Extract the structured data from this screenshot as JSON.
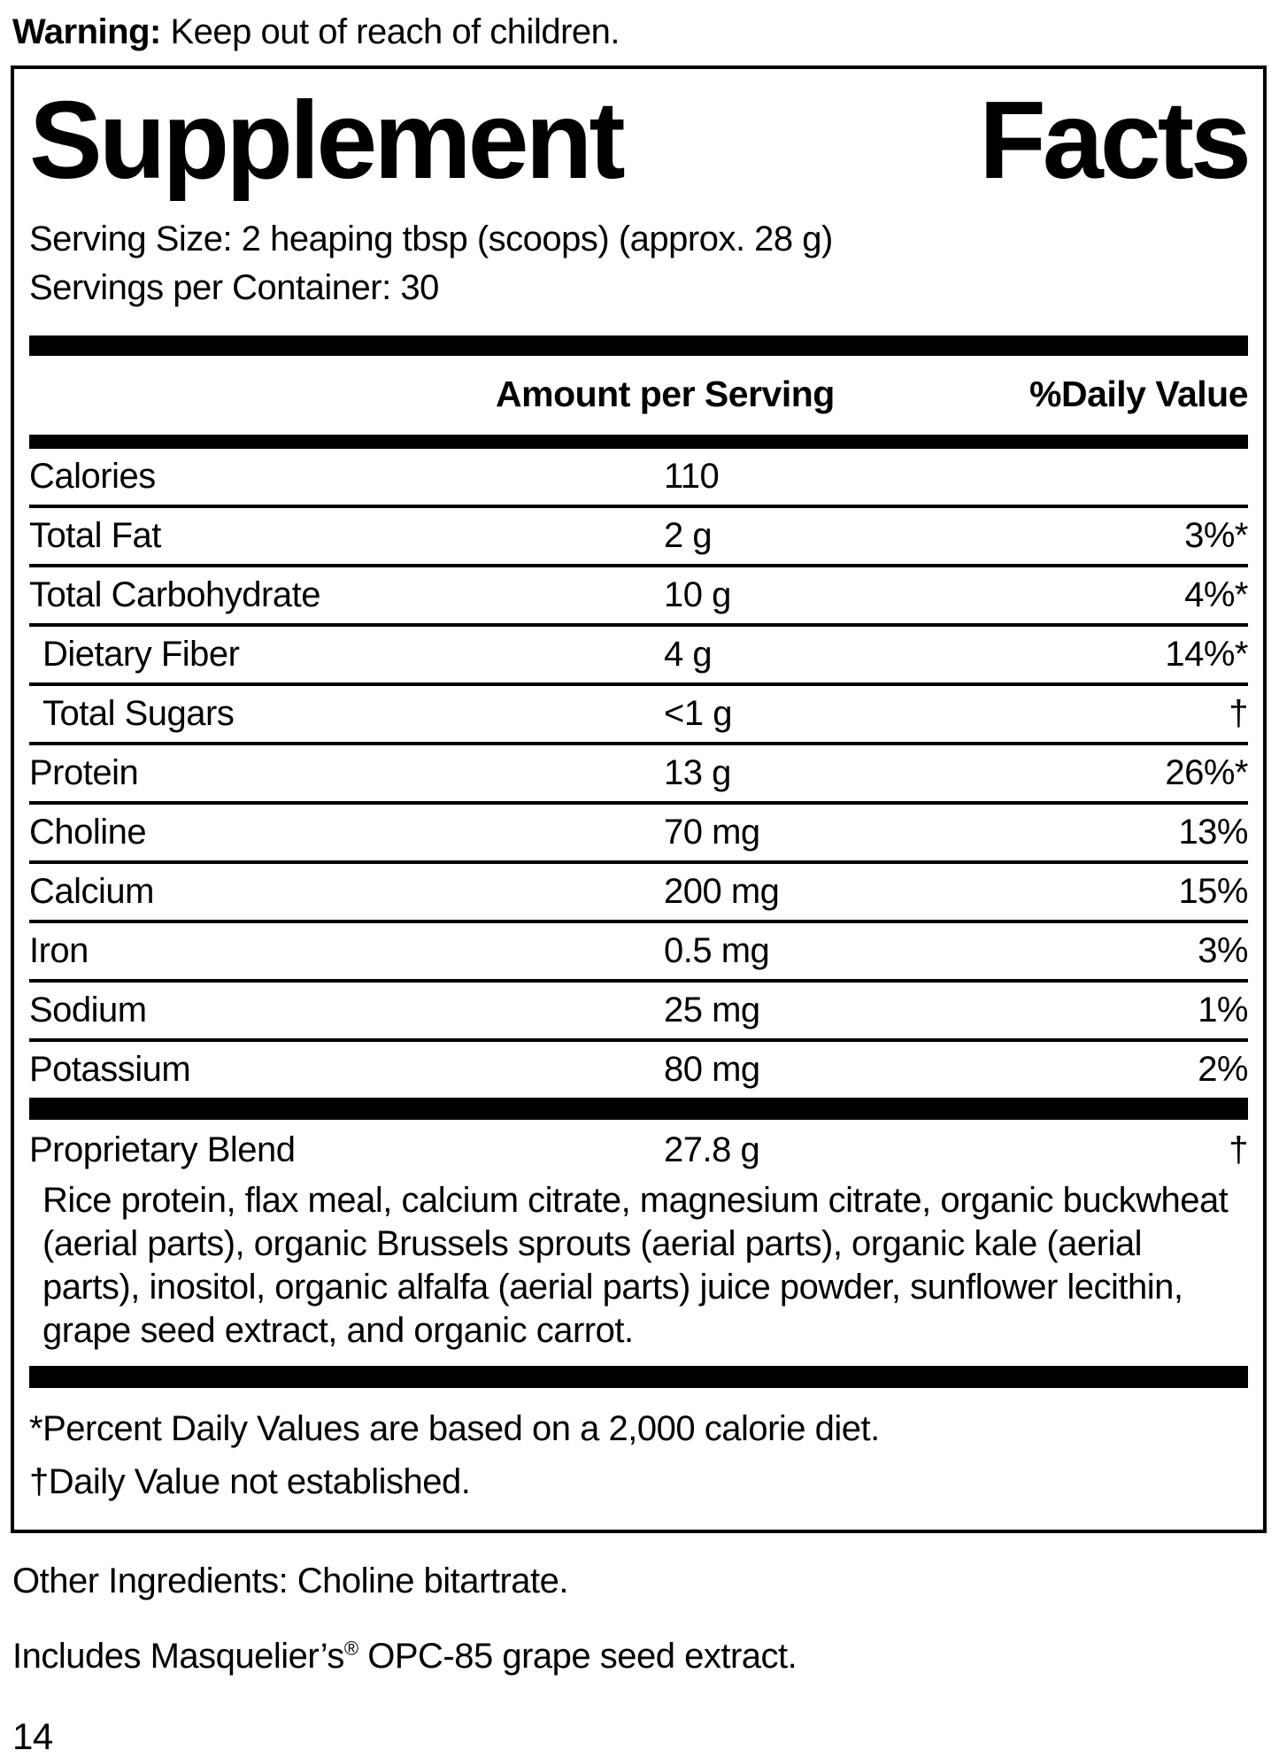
{
  "warning": {
    "label": "Warning:",
    "text": " Keep out of reach of children."
  },
  "supplement_facts": {
    "title_word1": "Supplement",
    "title_word2": "Facts",
    "serving_size": "Serving Size: 2 heaping tbsp (scoops) (approx. 28 g)",
    "servings_per_container": "Servings per Container: 30",
    "columns": {
      "amount": "Amount per Serving",
      "daily_value": "%Daily Value"
    },
    "rows": [
      {
        "label": "Calories",
        "amount": "110",
        "dv": ""
      },
      {
        "label": "Total Fat",
        "amount": "2 g",
        "dv": "3%*"
      },
      {
        "label": "Total Carbohydrate",
        "amount": "10 g",
        "dv": "4%*"
      },
      {
        "label": "Dietary Fiber",
        "amount": "4 g",
        "dv": "14%*"
      },
      {
        "label": "Total Sugars",
        "amount": "<1 g",
        "dv": "†"
      },
      {
        "label": "Protein",
        "amount": "13 g",
        "dv": "26%*"
      },
      {
        "label": "Choline",
        "amount": "70 mg",
        "dv": "13%"
      },
      {
        "label": "Calcium",
        "amount": "200 mg",
        "dv": "15%"
      },
      {
        "label": "Iron",
        "amount": "0.5 mg",
        "dv": "3%"
      },
      {
        "label": "Sodium",
        "amount": "25 mg",
        "dv": "1%"
      },
      {
        "label": "Potassium",
        "amount": "80 mg",
        "dv": "2%"
      }
    ],
    "proprietary_blend": {
      "label": "Proprietary Blend",
      "amount": "27.8 g",
      "dv": "†",
      "ingredients": "Rice protein, flax meal, calcium citrate, magnesium citrate, organic buckwheat (aerial parts), organic Brussels sprouts (aerial parts), organic kale (aerial parts), inositol, organic alfalfa (aerial parts) juice powder, sunflower lecithin, grape seed extract, and organic carrot."
    },
    "footnotes": {
      "percent": "*Percent Daily Values are based on a 2,000 calorie diet.",
      "dagger": "†Daily Value not established."
    }
  },
  "other_ingredients": "Other Ingredients: Choline bitartrate.",
  "includes": {
    "pre": "Includes Masquelier’s",
    "reg_mark": "®",
    "post": " OPC-85 grape seed extract."
  },
  "page_number": "14",
  "colors": {
    "ink": "#000000",
    "background": "#ffffff"
  }
}
